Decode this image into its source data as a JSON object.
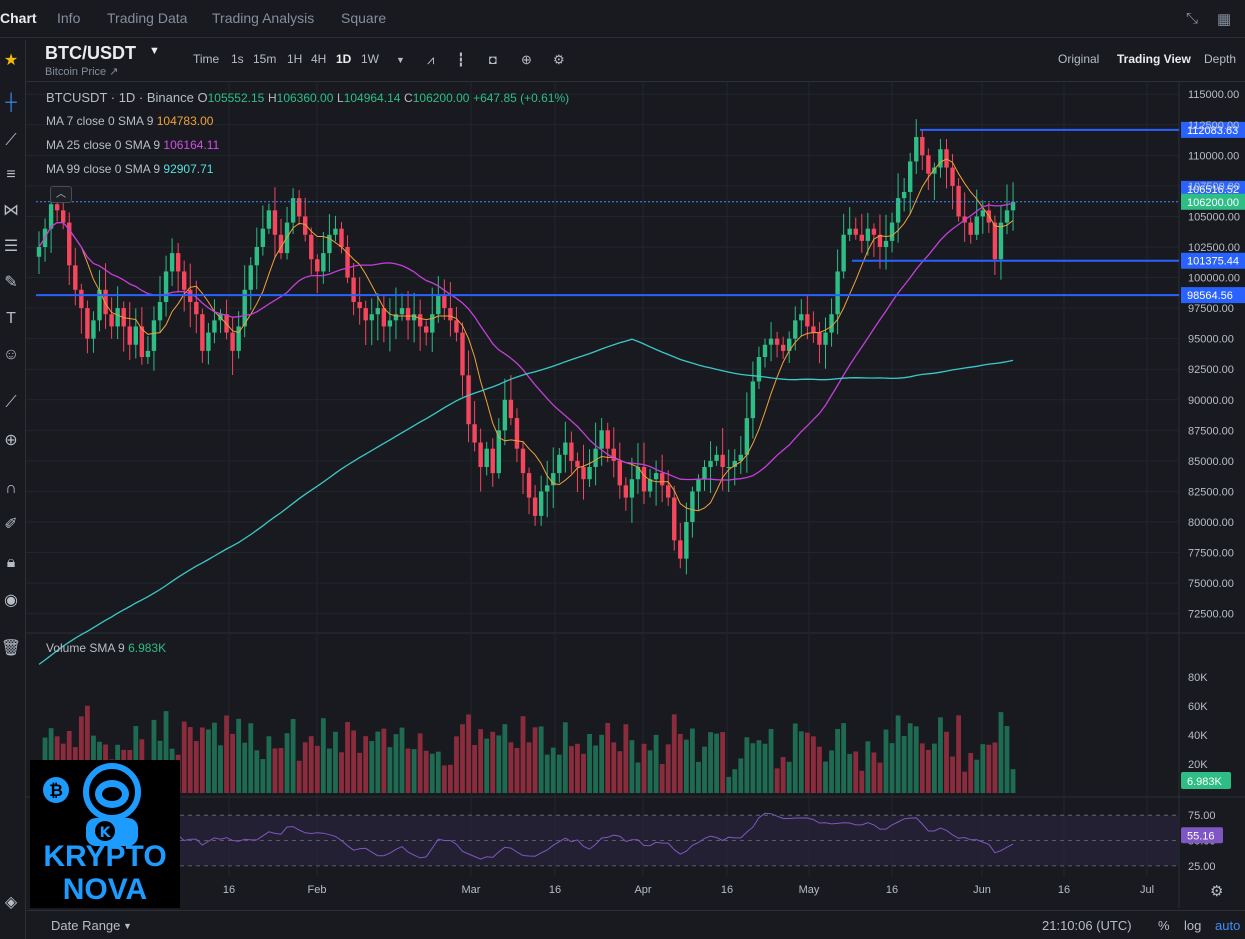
{
  "nav": {
    "tabs": [
      "Chart",
      "Info",
      "Trading Data",
      "Trading Analysis",
      "Square"
    ]
  },
  "symbol": {
    "name": "BTC/USDT",
    "subtitle": "Bitcoin Price ↗"
  },
  "toolbar": {
    "timeframes": [
      "Time",
      "1s",
      "15m",
      "1H",
      "4H",
      "1D",
      "1W"
    ],
    "active_timeframe": "1D",
    "views": [
      "Original",
      "Trading View",
      "Depth"
    ],
    "active_view": "Trading View"
  },
  "legend": {
    "ticker": "BTCUSDT · 1D · Binance",
    "o_label": "O",
    "open": "105552.15",
    "h_label": "H",
    "high": "106360.00",
    "l_label": "L",
    "low": "104964.14",
    "c_label": "C",
    "close": "106200.00",
    "change": "+647.85 (+0.61%)",
    "ma7_label": "MA 7 close 0 SMA 9",
    "ma7": "104783.00",
    "ma25_label": "MA 25 close 0 SMA 9",
    "ma25": "106164.11",
    "ma99_label": "MA 99 close 0 SMA 9",
    "ma99": "92907.71",
    "volume_label": "Volume SMA 9",
    "volume": "6.983K"
  },
  "colors": {
    "up": "#2ebd85",
    "down": "#f6465d",
    "ma7": "#f0a23a",
    "ma25": "#c33fd8",
    "ma99": "#3cc8c8",
    "hline": "#2962ff",
    "rsi": "#7e57c2",
    "bg": "#181a20"
  },
  "chart_data": {
    "type": "candlestick",
    "price_ticks": [
      115000,
      112500,
      110000,
      107500,
      105000,
      102500,
      100000,
      97500,
      95000,
      92500,
      90000,
      87500,
      85000,
      82500,
      80000,
      77500,
      75000,
      72500
    ],
    "price_tick_labels": [
      "115000.00",
      "112500.00",
      "110000.00",
      "107500.00",
      "105000.00",
      "102500.00",
      "100000.00",
      "97500.00",
      "95000.00",
      "92500.00",
      "90000.00",
      "87500.00",
      "85000.00",
      "82500.00",
      "80000.00",
      "77500.00",
      "75000.00",
      "72500.00"
    ],
    "x_tick_labels": [
      "16",
      "Feb",
      "Mar",
      "16",
      "Apr",
      "16",
      "May",
      "16",
      "Jun",
      "16",
      "Jul"
    ],
    "horizontal_levels": [
      {
        "price": 112083.63,
        "label": "112083.63"
      },
      {
        "price": 101375.44,
        "label": "101375.44"
      },
      {
        "price": 98564.56,
        "label": "98564.56"
      }
    ],
    "marker_levels": [
      {
        "price": 106516.52,
        "label": "106516.52"
      },
      {
        "price": 106200.0,
        "label": "106200.00"
      }
    ],
    "closes": [
      102500,
      104000,
      106000,
      105500,
      104500,
      101000,
      99000,
      97500,
      95000,
      96500,
      99000,
      97000,
      96000,
      97500,
      96000,
      94500,
      96000,
      93500,
      94000,
      96500,
      98000,
      100500,
      102000,
      100500,
      99000,
      98000,
      97000,
      94000,
      95500,
      96500,
      97000,
      95500,
      94000,
      96000,
      99000,
      101000,
      102500,
      104000,
      105500,
      103500,
      102000,
      104500,
      106500,
      105000,
      103500,
      101500,
      100500,
      102000,
      103500,
      104000,
      102500,
      100000,
      98000,
      97500,
      96500,
      97000,
      97500,
      96000,
      96500,
      97000,
      97500,
      96500,
      97000,
      96000,
      95500,
      97000,
      98500,
      97500,
      96500,
      95500,
      92000,
      88000,
      86500,
      84500,
      86000,
      84000,
      87500,
      90000,
      88500,
      86000,
      84000,
      82000,
      80500,
      82500,
      83000,
      84000,
      85500,
      86500,
      85000,
      84500,
      83500,
      84500,
      86000,
      87500,
      86000,
      85000,
      83000,
      82000,
      83500,
      84500,
      82500,
      83500,
      84000,
      83000,
      82000,
      78500,
      77000,
      80000,
      82500,
      83500,
      84500,
      85000,
      85500,
      84500,
      84500,
      85000,
      85500,
      88500,
      91500,
      93500,
      94500,
      95000,
      94500,
      94000,
      95000,
      96500,
      97000,
      96000,
      95500,
      94500,
      95500,
      97000,
      100500,
      103500,
      104000,
      103500,
      103000,
      104000,
      103500,
      102500,
      103000,
      104500,
      106500,
      107000,
      109500,
      111500,
      110000,
      108500,
      109000,
      110500,
      109000,
      107500,
      105000,
      104500,
      103500,
      105000,
      105500,
      104500,
      101500,
      104500,
      105500,
      106200
    ],
    "volume_ticks": [
      80000,
      60000,
      40000,
      20000
    ],
    "volume_tick_labels": [
      "80K",
      "60K",
      "40K",
      "20K"
    ],
    "rsi_ticks": [
      75,
      50,
      25
    ],
    "rsi_tick_labels": [
      "75.00",
      "50.00",
      "25.00"
    ],
    "rsi_last": "55.16"
  },
  "bottom": {
    "date_range": "Date Range",
    "time": "21:10:06 (UTC)",
    "pct": "%",
    "log": "log",
    "auto": "auto"
  },
  "logo": {
    "line1": "KRYPTO",
    "line2": "NOVA",
    "badge": "K"
  }
}
